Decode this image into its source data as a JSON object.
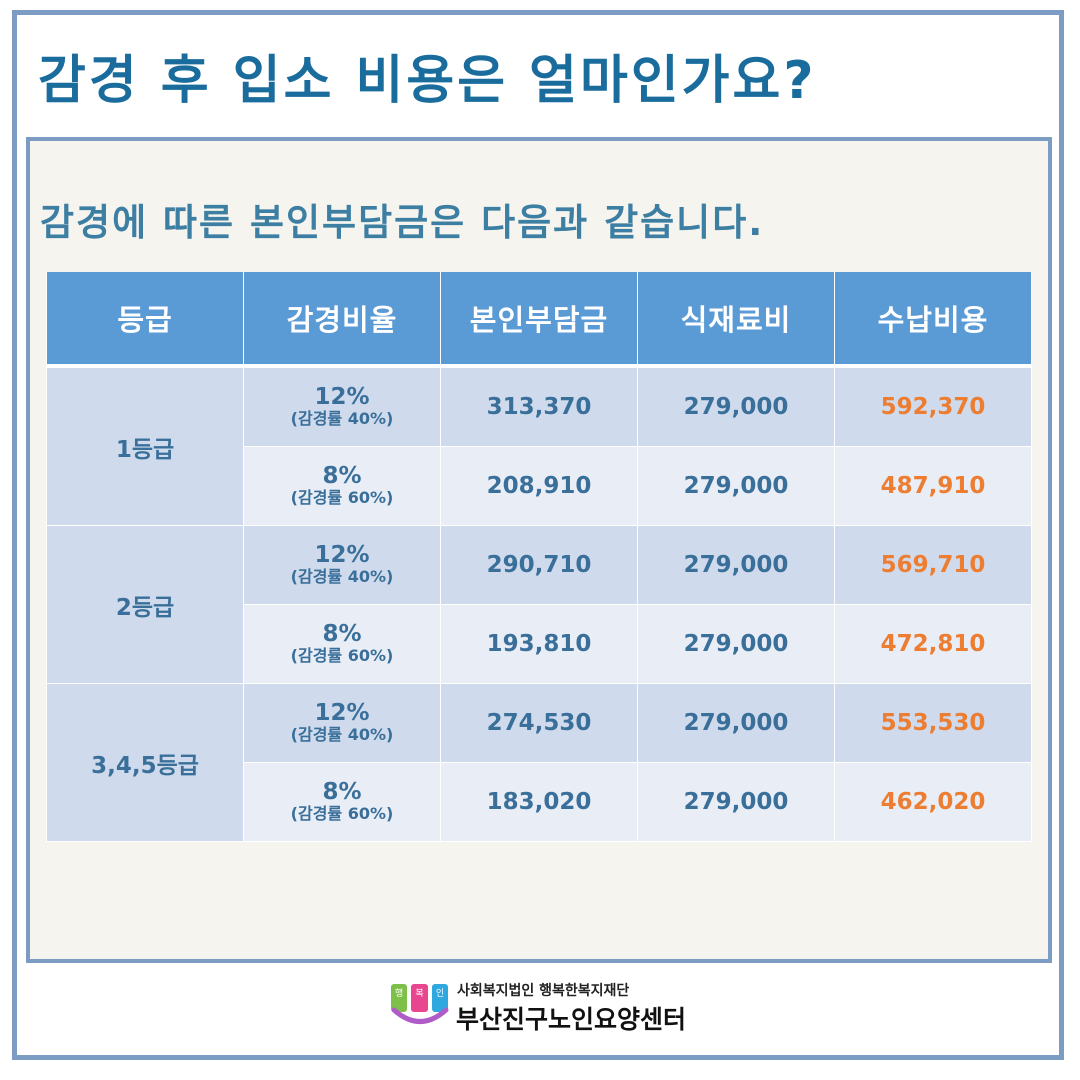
{
  "title": "감경 후 입소 비용은 얼마인가요?",
  "subtitle": "감경에 따른 본인부담금은 다음과 같습니다.",
  "table": {
    "headers": [
      "등급",
      "감경비율",
      "본인부담금",
      "식재료비",
      "수납비용"
    ],
    "groups": [
      {
        "grade": "1등급",
        "rows": [
          {
            "rate": "12%",
            "rate_note": "(감경률 40%)",
            "copay": "313,370",
            "food": "279,000",
            "total": "592,370"
          },
          {
            "rate": "8%",
            "rate_note": "(감경률 60%)",
            "copay": "208,910",
            "food": "279,000",
            "total": "487,910"
          }
        ]
      },
      {
        "grade": "2등급",
        "rows": [
          {
            "rate": "12%",
            "rate_note": "(감경률 40%)",
            "copay": "290,710",
            "food": "279,000",
            "total": "569,710"
          },
          {
            "rate": "8%",
            "rate_note": "(감경률 60%)",
            "copay": "193,810",
            "food": "279,000",
            "total": "472,810"
          }
        ]
      },
      {
        "grade": "3,4,5등급",
        "rows": [
          {
            "rate": "12%",
            "rate_note": "(감경률 40%)",
            "copay": "274,530",
            "food": "279,000",
            "total": "553,530"
          },
          {
            "rate": "8%",
            "rate_note": "(감경률 60%)",
            "copay": "183,020",
            "food": "279,000",
            "total": "462,020"
          }
        ]
      }
    ]
  },
  "footer": {
    "logo_chars": [
      "행",
      "복",
      "인"
    ],
    "org": "사회복지법인 행복한복지재단",
    "center_name": "부산진구노인요양센터"
  },
  "colors": {
    "title": "#1a6c9c",
    "header_bg": "#5b9bd5",
    "row_dark": "#cfdbed",
    "row_light": "#e8edf6",
    "value_text": "#3a6f9a",
    "total_text": "#ed7d31",
    "frame": "#7d9cc4"
  }
}
